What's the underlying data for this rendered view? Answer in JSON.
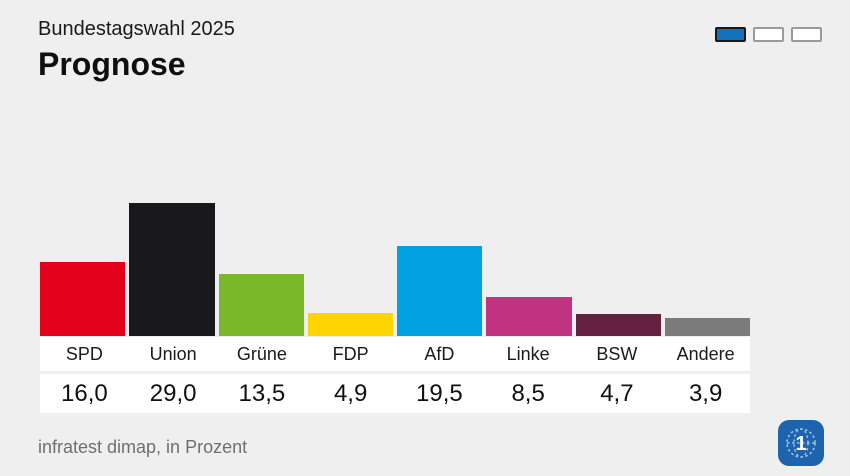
{
  "header": {
    "kicker": "Bundestagswahl 2025",
    "title": "Prognose"
  },
  "pagination": {
    "total": 3,
    "active_index": 0,
    "active_color": "#1470b8"
  },
  "chart_data": {
    "type": "bar",
    "title": "Prognose",
    "subtitle": "Bundestagswahl 2025",
    "categories": [
      "SPD",
      "Union",
      "Grüne",
      "FDP",
      "AfD",
      "Linke",
      "BSW",
      "Andere"
    ],
    "values": [
      16.0,
      29.0,
      13.5,
      4.9,
      19.5,
      8.5,
      4.7,
      3.9
    ],
    "value_labels": [
      "16,0",
      "29,0",
      "13,5",
      "4,9",
      "19,5",
      "8,5",
      "4,7",
      "3,9"
    ],
    "colors": [
      "#e2001a",
      "#19191b",
      "#7ab829",
      "#ffd400",
      "#00a2e2",
      "#c03380",
      "#63203f",
      "#7b7b7b"
    ],
    "unit": "Prozent",
    "ylim": [
      0,
      30
    ],
    "grid": false,
    "legend": "none",
    "source": "infratest dimap, in Prozent"
  },
  "footer": {
    "source_note": "infratest dimap, in Prozent"
  },
  "logo": {
    "glyph": "1"
  }
}
